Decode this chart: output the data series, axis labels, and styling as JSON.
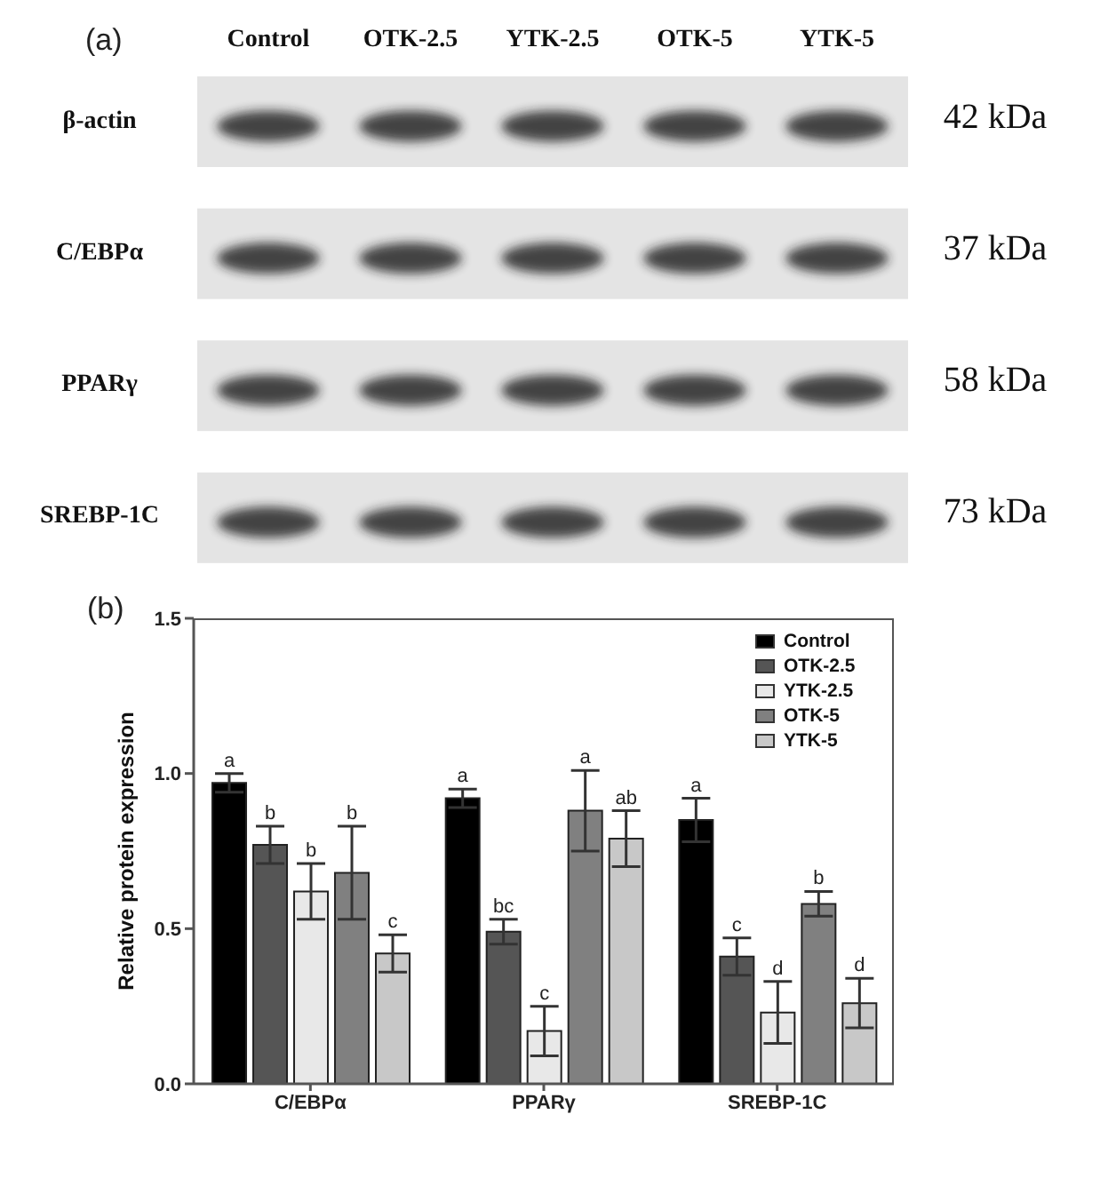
{
  "chart_data": [
    {
      "type": "other",
      "title": "(a)",
      "categories": [
        "Control",
        "OTK-2.5",
        "YTK-2.5",
        "OTK-5",
        "YTK-5"
      ],
      "y_categories": [
        "β-actin",
        "C/EBPα",
        "PPARγ",
        "SREBP-1C"
      ],
      "y2_categories": [
        "42 kDa",
        "37 kDa",
        "58 kDa",
        "73 kDa"
      ]
    },
    {
      "type": "bar",
      "title": "(b)",
      "ylabel": "Relative protein expression",
      "categories": [
        "C/EBPα",
        "PPARγ",
        "SREBP-1C"
      ],
      "ylim": [
        0,
        1.5
      ],
      "yticks": [
        {
          "value": 0,
          "label": "0.0"
        },
        {
          "value": 0.5,
          "label": "0.5"
        },
        {
          "value": 1,
          "label": "1.0"
        },
        {
          "value": 1.5,
          "label": "1.5"
        }
      ],
      "legend": "top right",
      "series": [
        {
          "name": "Control",
          "color": "#000000",
          "values": [
            0.97,
            0.92,
            0.85
          ],
          "errors": [
            0.03,
            0.03,
            0.07
          ],
          "value_labels": [
            "a",
            "a",
            "a"
          ]
        },
        {
          "name": "OTK-2.5",
          "color": "#555555",
          "values": [
            0.77,
            0.49,
            0.41
          ],
          "errors": [
            0.06,
            0.04,
            0.06
          ],
          "value_labels": [
            "b",
            "bc",
            "c"
          ]
        },
        {
          "name": "YTK-2.5",
          "color": "#e8e8e8",
          "values": [
            0.62,
            0.17,
            0.23
          ],
          "errors": [
            0.09,
            0.08,
            0.1
          ],
          "value_labels": [
            "b",
            "c",
            "d"
          ]
        },
        {
          "name": "OTK-5",
          "color": "#808080",
          "values": [
            0.68,
            0.88,
            0.58
          ],
          "errors": [
            0.15,
            0.13,
            0.04
          ],
          "value_labels": [
            "b",
            "a",
            "b"
          ]
        },
        {
          "name": "YTK-5",
          "color": "#c8c8c8",
          "values": [
            0.42,
            0.79,
            0.26
          ],
          "errors": [
            0.06,
            0.09,
            0.08
          ],
          "value_labels": [
            "c",
            "ab",
            "d"
          ]
        }
      ]
    }
  ]
}
